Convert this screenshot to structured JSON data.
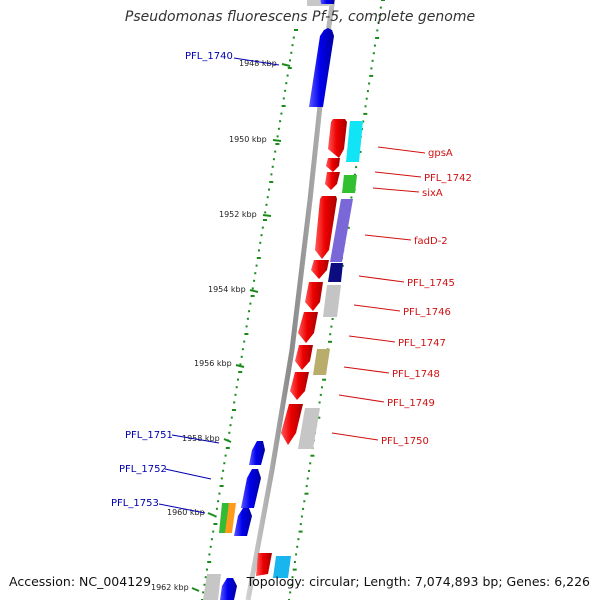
{
  "title": "Pseudomonas fluorescens Pf-5, complete genome",
  "accession": "Accession: NC_004129",
  "topology": "Topology: circular; Length: 7,074,893 bp; Genes: 6,226",
  "colors": {
    "backbone": "#9a9a9a",
    "tick": "#1a8a1a",
    "forward_label": "#d01010",
    "reverse_label": "#0000b0"
  },
  "scale_labels": [
    "1948 kbp",
    "1950 kbp",
    "1952 kbp",
    "1954 kbp",
    "1956 kbp",
    "1958 kbp",
    "1960 kbp",
    "1962 kbp"
  ],
  "forward_genes": [
    "gpsA",
    "PFL_1742",
    "sixA",
    "fadD-2",
    "PFL_1745",
    "PFL_1746",
    "PFL_1747",
    "PFL_1748",
    "PFL_1749",
    "PFL_1750"
  ],
  "reverse_genes": [
    "PFL_1740",
    "PFL_1751",
    "PFL_1752",
    "PFL_1753"
  ],
  "cog_colors": [
    "cyan",
    "green",
    "slate-blue",
    "navy",
    "grey",
    "olive",
    "grey",
    "orange",
    "sky-blue"
  ]
}
